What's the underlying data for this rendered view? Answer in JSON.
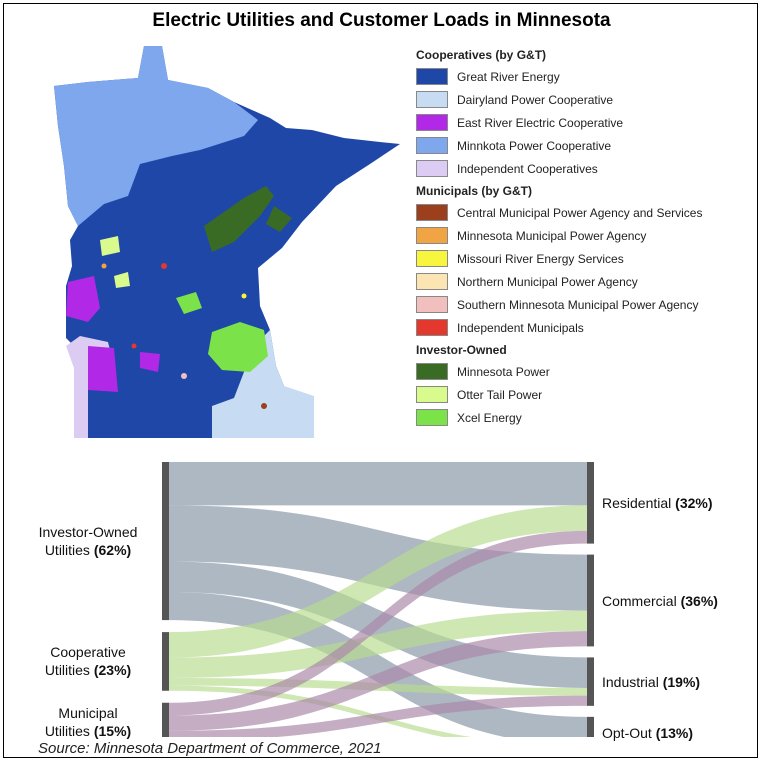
{
  "title": "Electric Utilities and Customer Loads in Minnesota",
  "source": "Source: Minnesota Department of Commerce, 2021",
  "legend": {
    "groups": [
      {
        "heading": "Cooperatives (by G&T)",
        "items": [
          {
            "label": "Great River Energy",
            "color": "#1f47a8"
          },
          {
            "label": "Dairyland Power Cooperative",
            "color": "#c7dcf3"
          },
          {
            "label": "East River Electric Cooperative",
            "color": "#b128e6"
          },
          {
            "label": "Minnkota Power Cooperative",
            "color": "#7ea7ee"
          },
          {
            "label": "Independent Cooperatives",
            "color": "#dccbf2"
          }
        ]
      },
      {
        "heading": "Municipals (by G&T)",
        "items": [
          {
            "label": "Central Municipal Power Agency and Services",
            "color": "#9b3f1c"
          },
          {
            "label": "Minnesota Municipal Power Agency",
            "color": "#f0a443"
          },
          {
            "label": "Missouri River Energy Services",
            "color": "#f8f53e"
          },
          {
            "label": "Northern Municipal Power Agency",
            "color": "#fbe6b3"
          },
          {
            "label": "Southern Minnesota Municipal Power Agency",
            "color": "#f2bfbf"
          },
          {
            "label": "Independent Municipals",
            "color": "#e2382e"
          }
        ]
      },
      {
        "heading": "Investor-Owned",
        "items": [
          {
            "label": "Minnesota Power",
            "color": "#3a6b25"
          },
          {
            "label": "Otter Tail Power",
            "color": "#d9fa8c"
          },
          {
            "label": "Xcel Energy",
            "color": "#7ce24a"
          }
        ]
      }
    ]
  },
  "sankey": {
    "sources": [
      {
        "name": "Investor-Owned",
        "name2": "Utilities",
        "pct": "(62%)",
        "value": 62,
        "color": "#8796a6"
      },
      {
        "name": "Cooperative",
        "name2": "Utilities",
        "pct": "(23%)",
        "value": 23,
        "color": "#b8dc8f"
      },
      {
        "name": "Municipal",
        "name2": "Utilities",
        "pct": "(15%)",
        "value": 15,
        "color": "#a988a8"
      }
    ],
    "targets": [
      {
        "name": "Residential",
        "pct": "(32%)",
        "value": 32
      },
      {
        "name": "Commercial",
        "pct": "(36%)",
        "value": 36
      },
      {
        "name": "Industrial",
        "pct": "(19%)",
        "value": 19
      },
      {
        "name": "Opt-Out",
        "pct": "(13%)",
        "value": 13
      }
    ],
    "flows": [
      {
        "source": 0,
        "target": 0,
        "value": 17
      },
      {
        "source": 0,
        "target": 1,
        "value": 22
      },
      {
        "source": 0,
        "target": 2,
        "value": 12
      },
      {
        "source": 0,
        "target": 3,
        "value": 11
      },
      {
        "source": 1,
        "target": 0,
        "value": 10
      },
      {
        "source": 1,
        "target": 1,
        "value": 8
      },
      {
        "source": 1,
        "target": 2,
        "value": 3
      },
      {
        "source": 1,
        "target": 3,
        "value": 2
      },
      {
        "source": 2,
        "target": 0,
        "value": 5
      },
      {
        "source": 2,
        "target": 1,
        "value": 6
      },
      {
        "source": 2,
        "target": 2,
        "value": 4
      },
      {
        "source": 2,
        "target": 3,
        "value": 0.4
      }
    ]
  }
}
